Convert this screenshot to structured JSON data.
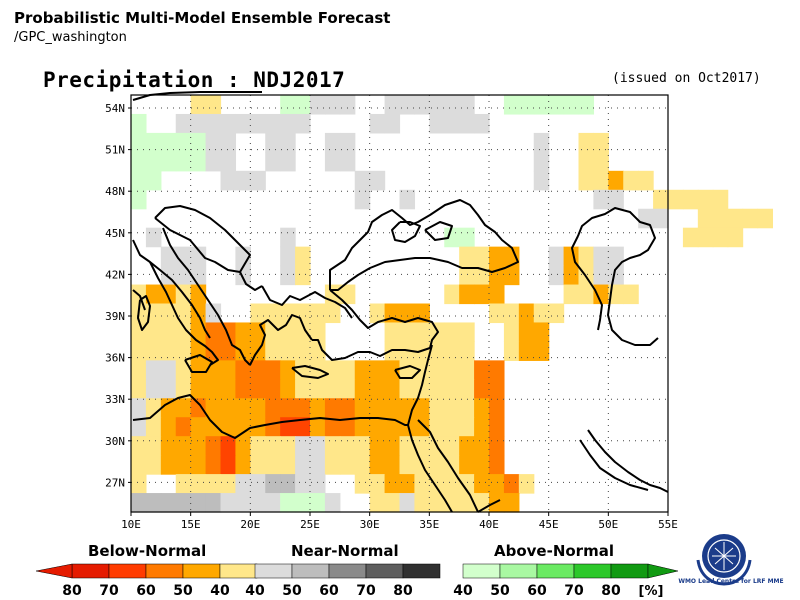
{
  "header": {
    "title": "Probabilistic Multi-Model Ensemble Forecast",
    "subtitle": "/GPC_washington",
    "map_title": "Precipitation : NDJ2017",
    "issued": "(issued on Oct2017)"
  },
  "axes": {
    "lat_labels": [
      "54N",
      "51N",
      "48N",
      "45N",
      "42N",
      "39N",
      "36N",
      "33N",
      "30N",
      "27N"
    ],
    "lon_labels": [
      "10E",
      "15E",
      "20E",
      "25E",
      "30E",
      "35E",
      "40E",
      "45E",
      "50E",
      "55E"
    ]
  },
  "legend": {
    "below": {
      "title": "Below-Normal",
      "ticks": [
        "80",
        "70",
        "60",
        "50",
        "40"
      ],
      "colors": [
        "#e51b00",
        "#ff3b00",
        "#ff7a00",
        "#ffa800",
        "#ffe78a"
      ]
    },
    "near": {
      "title": "Near-Normal",
      "ticks": [
        "40",
        "50",
        "60",
        "70",
        "80"
      ],
      "colors": [
        "#dcdcdc",
        "#bdbdbd",
        "#8a8a8a",
        "#5e5e5e",
        "#303030"
      ]
    },
    "above": {
      "title": "Above-Normal",
      "ticks": [
        "40",
        "50",
        "60",
        "70",
        "80"
      ],
      "colors": [
        "#d2ffcc",
        "#a9f8a2",
        "#6bea63",
        "#2cc82a",
        "#119a12"
      ]
    },
    "unit": "[%]"
  },
  "logo": {
    "name": "wmo-logo",
    "caption": "WMO Lead Centre for LRF MME"
  },
  "colors": {
    "B1": "#ffe78a",
    "B2": "#ffa800",
    "B3": "#ff7a00",
    "B4": "#ff4400",
    "N1": "#dcdcdc",
    "N2": "#bdbdbd",
    "A1": "#d2ffcc",
    "A2": "#b5f7ad"
  },
  "grid": [
    "....B1B1....A1A1N1N1N1..N1N1N1N1N1N1..A1A1A1A1A1A1",
    "A1..N1N1N1N1N1N1N1N1N1....N1N1..N1N1N1N1..........",
    "A1A1A1A1A1N1N1..N1N1..N1N1............N1..B1B1....",
    "A1A1A1A1A1N1N1..N1N1..N1N1............N1..B1B1....",
    "A1A1....N1N1N1......N1N1..........N1..B1B1B2B1B1..",
    "A1..............N1..N1............N1N1..B1B1B1B1B1",
    "..................................N1N1..B1B1B1B1B1",
    ".N1........N1..........A1A1..............B1B1B1B1..",
    "..N1N1N1..N1..N1B1..........B1B1B2B2..N1B2B1N1N1..",
    "..N1N1N1..N1..N1B1..........B1B1B2B2..N1B2B1N1N1..",
    "B1B2B2B1B2........B1B1......B1B2B2B2....B1B1B2B1B1",
    "B1B1B1B1B2N1..B1B1B1B1B1B1..B1B2B2B2....B1B1B2B1B1",
    "B1B1B1B1B2B3B3B2B2B1B1B1B1....B1B1B1B1B1B1..B1B2B2",
    "B1B1B1B1B2B3B3B2B2B1B1B1B1....B1B1B1B1B1B1..B1B2B2",
    "B1N1N1B1B2B2B2B3B3B3B2B1B1B1B1B2B2B2B1B1B1B1B1B3B3",
    "B1N1N1B1B2B2B2B3B3B3B2B1B1B1B1B2B2B2B1B1B1B1B1B3B3",
    "N1B1B2B2B3B2B2B2B2B3B3B3B2B3B3B2B2B2B2B2B1B1B1B2B3",
    "N1B1B2B3B2B2B2B2B2B3B4B4B2B3B3B2B2B2B2B2B1B1B1B2B3",
    "B1B1B2B2B2B3B4B2B1B1B1N1N1B1B1B1B2B2B1B1B1B1B2B2B3",
    "B1B1B2B2B2B3B4B2B1B1B1N1N1B1B1B1B2B2B1B1B1B1B2B2B3",
    "B1..B1B1B1B1N1N1N2N2N1N1..B1B1B2B2B1B1B1B1B2B2B3B1",
    "N2N2N2N2N2N2N1N1N1N1A1A1A1N1..B1B1N1B1B1B1B1B1B2B2"
  ]
}
